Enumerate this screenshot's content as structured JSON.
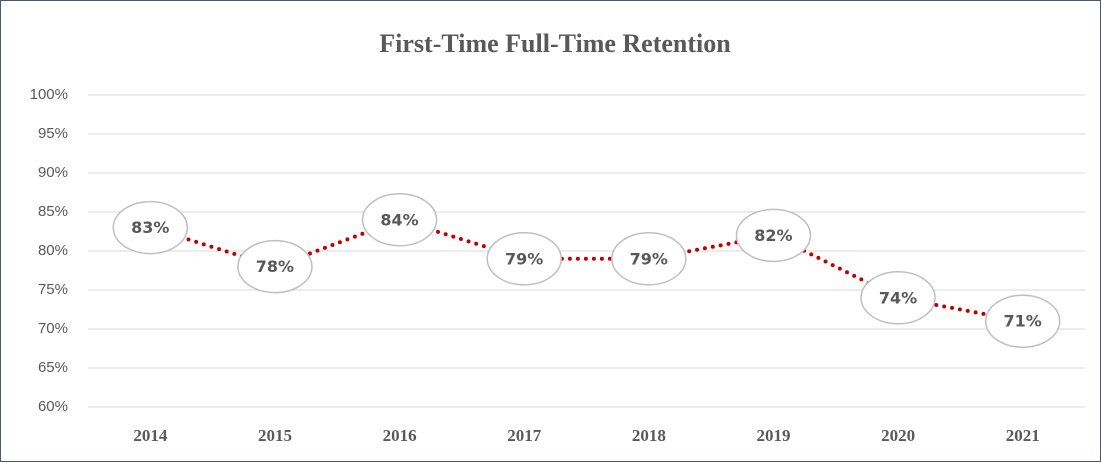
{
  "chart_data": {
    "type": "line",
    "title": "First-Time Full-Time Retention",
    "categories": [
      "2014",
      "2015",
      "2016",
      "2017",
      "2018",
      "2019",
      "2020",
      "2021"
    ],
    "series": [
      {
        "name": "Retention",
        "color": "#c00000",
        "values": [
          83,
          78,
          84,
          79,
          79,
          82,
          74,
          71
        ],
        "value_labels": [
          "83%",
          "78%",
          "84%",
          "79%",
          "79%",
          "82%",
          "74%",
          "71%"
        ]
      }
    ],
    "ylim": [
      60,
      100
    ],
    "yticks": [
      {
        "value": 60,
        "label": "60%"
      },
      {
        "value": 65,
        "label": "65%"
      },
      {
        "value": 70,
        "label": "70%"
      },
      {
        "value": 75,
        "label": "75%"
      },
      {
        "value": 80,
        "label": "80%"
      },
      {
        "value": 85,
        "label": "85%"
      },
      {
        "value": 90,
        "label": "90%"
      },
      {
        "value": 95,
        "label": "95%"
      },
      {
        "value": 100,
        "label": "100%"
      }
    ],
    "grid": true
  }
}
